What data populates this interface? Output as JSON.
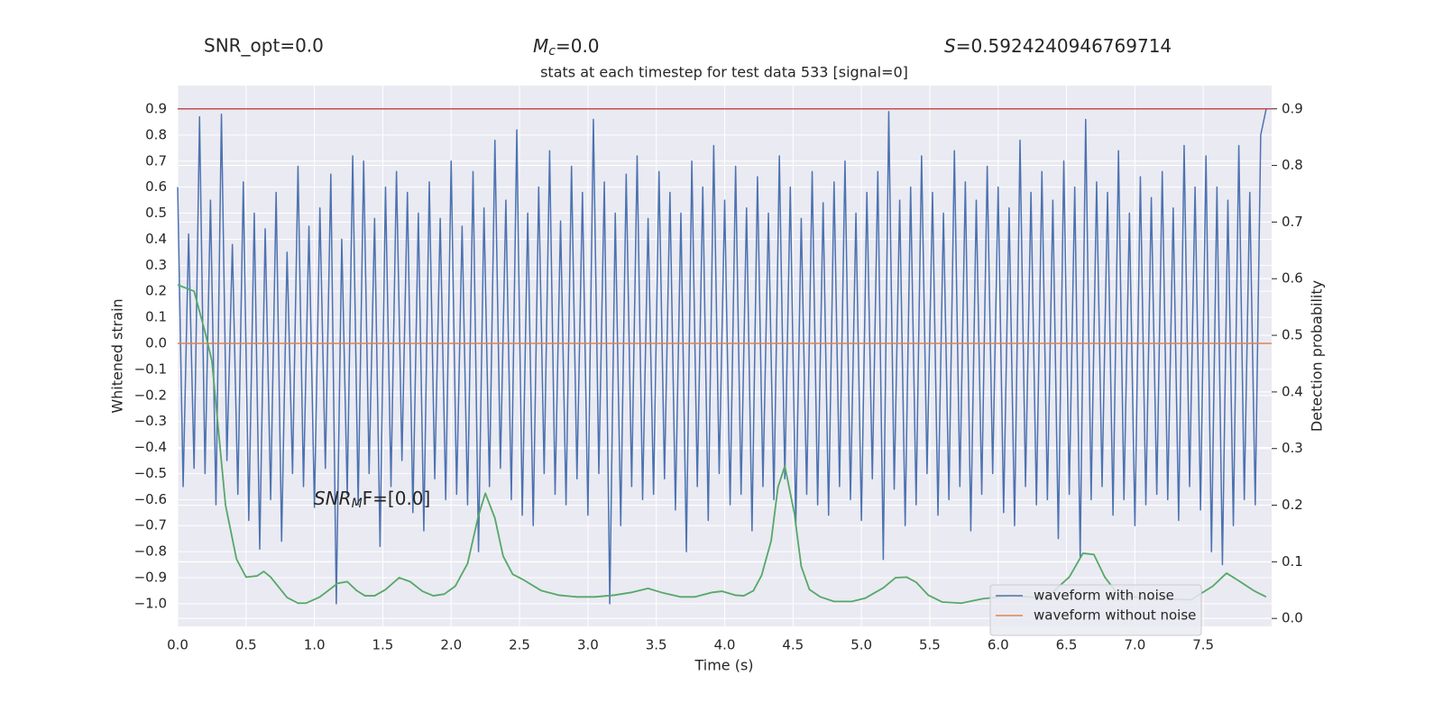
{
  "chart_data": {
    "type": "line",
    "title": "stats at each timestep for test data 533 [signal=0]",
    "annotations": [
      {
        "text": "SNR_opt=0.0"
      },
      {
        "symbol": "M",
        "sub": "c",
        "text": "=0.0"
      },
      {
        "symbol": "S",
        "text": "=0.5924240946769714"
      },
      {
        "symbol": "SNR",
        "sub": "M",
        "text": "F=[0.0]"
      }
    ],
    "xlabel": "Time (s)",
    "ylabel": "Whitened strain",
    "y2label": "Detection probability",
    "xlim": [
      0,
      8
    ],
    "ylim": [
      -1.087,
      0.99
    ],
    "y2lim": [
      -0.014,
      0.941
    ],
    "xticks": [
      {
        "value": 0,
        "label": "0.0"
      },
      0.5,
      {
        "value": 1,
        "label": "1.0"
      },
      1.5,
      {
        "value": 2,
        "label": "2.0"
      },
      2.5,
      {
        "value": 3,
        "label": "3.0"
      },
      3.5,
      {
        "value": 4,
        "label": "4.0"
      },
      4.5,
      {
        "value": 5,
        "label": "5.0"
      },
      5.5,
      {
        "value": 6,
        "label": "6.0"
      },
      6.5,
      {
        "value": 7,
        "label": "7.0"
      },
      7.5
    ],
    "yticks": [
      {
        "value": -1.0,
        "label": "−1.0"
      },
      {
        "value": -0.9,
        "label": "−0.9"
      },
      {
        "value": -0.8,
        "label": "−0.8"
      },
      {
        "value": -0.7,
        "label": "−0.7"
      },
      {
        "value": -0.6,
        "label": "−0.6"
      },
      {
        "value": -0.5,
        "label": "−0.5"
      },
      {
        "value": -0.4,
        "label": "−0.4"
      },
      {
        "value": -0.3,
        "label": "−0.3"
      },
      {
        "value": -0.2,
        "label": "−0.2"
      },
      {
        "value": -0.1,
        "label": "−0.1"
      },
      {
        "value": 0,
        "label": "0.0"
      },
      0.1,
      0.2,
      0.3,
      0.4,
      0.5,
      0.6,
      0.7,
      0.8,
      0.9
    ],
    "y2ticks": [
      {
        "value": 0,
        "label": "0.0"
      },
      0.1,
      0.2,
      0.3,
      0.4,
      0.5,
      0.6,
      0.7,
      0.8,
      0.9
    ],
    "grid": true,
    "legend": "lower right",
    "series": [
      {
        "name": "waveform with noise",
        "color": "#4c72b0",
        "x": [
          0,
          0.04,
          0.08,
          0.12,
          0.16,
          0.2,
          0.24,
          0.28,
          0.32,
          0.36,
          0.4,
          0.44,
          0.48,
          0.52,
          0.56,
          0.6,
          0.64,
          0.68,
          0.72,
          0.76,
          0.8,
          0.84,
          0.88,
          0.92,
          0.96,
          1,
          1.04,
          1.08,
          1.12,
          1.16,
          1.2,
          1.24,
          1.28,
          1.32,
          1.36,
          1.4,
          1.44,
          1.48,
          1.52,
          1.56,
          1.6,
          1.64,
          1.68,
          1.72,
          1.76,
          1.8,
          1.84,
          1.88,
          1.92,
          1.96,
          2,
          2.04,
          2.08,
          2.12,
          2.16,
          2.2,
          2.24,
          2.28,
          2.32,
          2.36,
          2.4,
          2.44,
          2.48,
          2.52,
          2.56,
          2.6,
          2.64,
          2.68,
          2.72,
          2.76,
          2.8,
          2.84,
          2.88,
          2.92,
          2.96,
          3,
          3.04,
          3.08,
          3.12,
          3.16,
          3.2,
          3.24,
          3.28,
          3.32,
          3.36,
          3.4,
          3.44,
          3.48,
          3.52,
          3.56,
          3.6,
          3.64,
          3.68,
          3.72,
          3.76,
          3.8,
          3.84,
          3.88,
          3.92,
          3.96,
          4,
          4.04,
          4.08,
          4.12,
          4.16,
          4.2,
          4.24,
          4.28,
          4.32,
          4.36,
          4.4,
          4.44,
          4.48,
          4.52,
          4.56,
          4.6,
          4.64,
          4.68,
          4.72,
          4.76,
          4.8,
          4.84,
          4.88,
          4.92,
          4.96,
          5,
          5.04,
          5.08,
          5.12,
          5.16,
          5.2,
          5.24,
          5.28,
          5.32,
          5.36,
          5.4,
          5.44,
          5.48,
          5.52,
          5.56,
          5.6,
          5.64,
          5.68,
          5.72,
          5.76,
          5.8,
          5.84,
          5.88,
          5.92,
          5.96,
          6,
          6.04,
          6.08,
          6.12,
          6.16,
          6.2,
          6.24,
          6.28,
          6.32,
          6.36,
          6.4,
          6.44,
          6.48,
          6.52,
          6.56,
          6.6,
          6.64,
          6.68,
          6.72,
          6.76,
          6.8,
          6.84,
          6.88,
          6.92,
          6.96,
          7,
          7.04,
          7.08,
          7.12,
          7.16,
          7.2,
          7.24,
          7.28,
          7.32,
          7.36,
          7.4,
          7.44,
          7.48,
          7.52,
          7.56,
          7.6,
          7.64,
          7.68,
          7.72,
          7.76,
          7.8,
          7.84,
          7.88,
          7.92,
          7.96
        ],
        "values": [
          0.6,
          -0.55,
          0.42,
          -0.48,
          0.87,
          -0.5,
          0.55,
          -0.62,
          0.88,
          -0.45,
          0.38,
          -0.58,
          0.62,
          -0.68,
          0.5,
          -0.79,
          0.44,
          -0.6,
          0.58,
          -0.76,
          0.35,
          -0.5,
          0.68,
          -0.55,
          0.45,
          -0.63,
          0.52,
          -0.48,
          0.65,
          -1.0,
          0.4,
          -0.58,
          0.72,
          -0.62,
          0.7,
          -0.5,
          0.48,
          -0.78,
          0.6,
          -0.55,
          0.66,
          -0.45,
          0.58,
          -0.65,
          0.5,
          -0.72,
          0.62,
          -0.52,
          0.48,
          -0.6,
          0.7,
          -0.58,
          0.45,
          -0.62,
          0.66,
          -0.8,
          0.52,
          -0.55,
          0.78,
          -0.48,
          0.55,
          -0.6,
          0.82,
          -0.66,
          0.5,
          -0.7,
          0.6,
          -0.5,
          0.74,
          -0.58,
          0.47,
          -0.62,
          0.68,
          -0.52,
          0.58,
          -0.66,
          0.86,
          -0.5,
          0.62,
          -1.0,
          0.5,
          -0.7,
          0.65,
          -0.55,
          0.72,
          -0.6,
          0.48,
          -0.58,
          0.66,
          -0.52,
          0.58,
          -0.64,
          0.5,
          -0.8,
          0.7,
          -0.55,
          0.6,
          -0.68,
          0.76,
          -0.5,
          0.55,
          -0.62,
          0.68,
          -0.58,
          0.52,
          -0.72,
          0.64,
          -0.55,
          0.5,
          -0.6,
          0.72,
          -0.52,
          0.6,
          -0.7,
          0.48,
          -0.58,
          0.66,
          -0.62,
          0.54,
          -0.66,
          0.62,
          -0.55,
          0.7,
          -0.6,
          0.5,
          -0.68,
          0.58,
          -0.52,
          0.66,
          -0.83,
          0.89,
          -0.56,
          0.55,
          -0.7,
          0.6,
          -0.62,
          0.72,
          -0.5,
          0.58,
          -0.66,
          0.5,
          -0.6,
          0.74,
          -0.55,
          0.62,
          -0.72,
          0.55,
          -0.58,
          0.68,
          -0.5,
          0.6,
          -0.65,
          0.52,
          -0.7,
          0.78,
          -0.55,
          0.58,
          -0.62,
          0.66,
          -0.6,
          0.55,
          -0.75,
          0.7,
          -0.58,
          0.6,
          -0.82,
          0.86,
          -0.6,
          0.62,
          -0.55,
          0.58,
          -0.66,
          0.74,
          -0.6,
          0.5,
          -0.7,
          0.64,
          -0.62,
          0.56,
          -0.58,
          0.66,
          -0.6,
          0.52,
          -0.68,
          0.76,
          -0.55,
          0.6,
          -0.64,
          0.72,
          -0.8,
          0.6,
          -0.85,
          0.55,
          -0.7,
          0.76,
          -0.6,
          0.58,
          -0.62,
          0.8,
          0.9
        ]
      },
      {
        "name": "waveform without noise",
        "color": "#dd8452",
        "x": [
          0,
          8
        ],
        "values": [
          0,
          0
        ]
      }
    ],
    "probability": {
      "color": "#55a868",
      "axis": "y2",
      "x": [
        0,
        0.12,
        0.2,
        0.25,
        0.3,
        0.35,
        0.43,
        0.5,
        0.58,
        0.63,
        0.68,
        0.8,
        0.88,
        0.94,
        1.04,
        1.17,
        1.24,
        1.31,
        1.37,
        1.44,
        1.52,
        1.62,
        1.7,
        1.79,
        1.87,
        1.95,
        2.03,
        2.12,
        2.2,
        2.25,
        2.32,
        2.38,
        2.45,
        2.53,
        2.66,
        2.79,
        2.92,
        3.05,
        3.19,
        3.32,
        3.44,
        3.55,
        3.68,
        3.78,
        3.91,
        3.98,
        4.08,
        4.14,
        4.21,
        4.27,
        4.34,
        4.39,
        4.44,
        4.51,
        4.56,
        4.62,
        4.7,
        4.8,
        4.93,
        5.03,
        5.16,
        5.25,
        5.33,
        5.4,
        5.49,
        5.59,
        5.73,
        5.89,
        6.1,
        6.35,
        6.52,
        6.62,
        6.7,
        6.78,
        6.88,
        7.1,
        7.41,
        7.57,
        7.67,
        7.75,
        7.87,
        7.96
      ],
      "values": [
        0.589,
        0.578,
        0.506,
        0.455,
        0.328,
        0.2,
        0.105,
        0.073,
        0.075,
        0.083,
        0.073,
        0.037,
        0.027,
        0.027,
        0.038,
        0.062,
        0.065,
        0.049,
        0.04,
        0.04,
        0.051,
        0.072,
        0.065,
        0.048,
        0.04,
        0.043,
        0.057,
        0.097,
        0.182,
        0.221,
        0.177,
        0.11,
        0.078,
        0.068,
        0.049,
        0.041,
        0.038,
        0.038,
        0.041,
        0.046,
        0.053,
        0.045,
        0.038,
        0.038,
        0.046,
        0.048,
        0.041,
        0.04,
        0.049,
        0.076,
        0.137,
        0.232,
        0.269,
        0.185,
        0.092,
        0.051,
        0.038,
        0.03,
        0.03,
        0.036,
        0.054,
        0.072,
        0.073,
        0.064,
        0.041,
        0.029,
        0.027,
        0.035,
        0.04,
        0.036,
        0.073,
        0.115,
        0.113,
        0.073,
        0.041,
        0.035,
        0.033,
        0.057,
        0.08,
        0.068,
        0.049,
        0.038
      ]
    },
    "hline": {
      "value": 0.9,
      "axis": "y2",
      "color": "#c44e52"
    }
  }
}
